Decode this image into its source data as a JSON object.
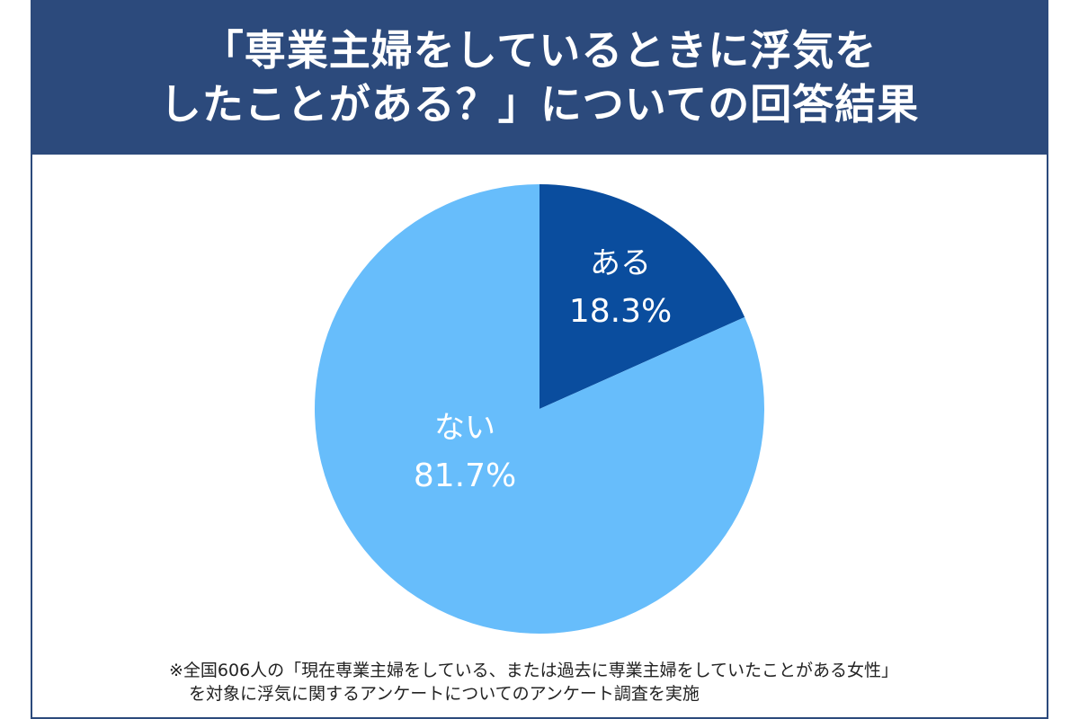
{
  "header": {
    "title_line1": "「専業主婦をしているときに浮気を",
    "title_line2": "したことがある？」についての回答結果"
  },
  "chart_data": {
    "type": "pie",
    "slices": [
      {
        "label": "ある",
        "value": 18.3,
        "value_label": "18.3%",
        "color": "#0a4d9e"
      },
      {
        "label": "ない",
        "value": 81.7,
        "value_label": "81.7%",
        "color": "#67bdfb"
      }
    ]
  },
  "footnote": {
    "line1": "※全国606人の「現在専業主婦をしている、または過去に専業主婦をしていたことがある女性」",
    "line2": "を対象に浮気に関するアンケートについてのアンケート調査を実施"
  },
  "colors": {
    "header_bg": "#2c4a7c",
    "border": "#2c4a7c"
  }
}
